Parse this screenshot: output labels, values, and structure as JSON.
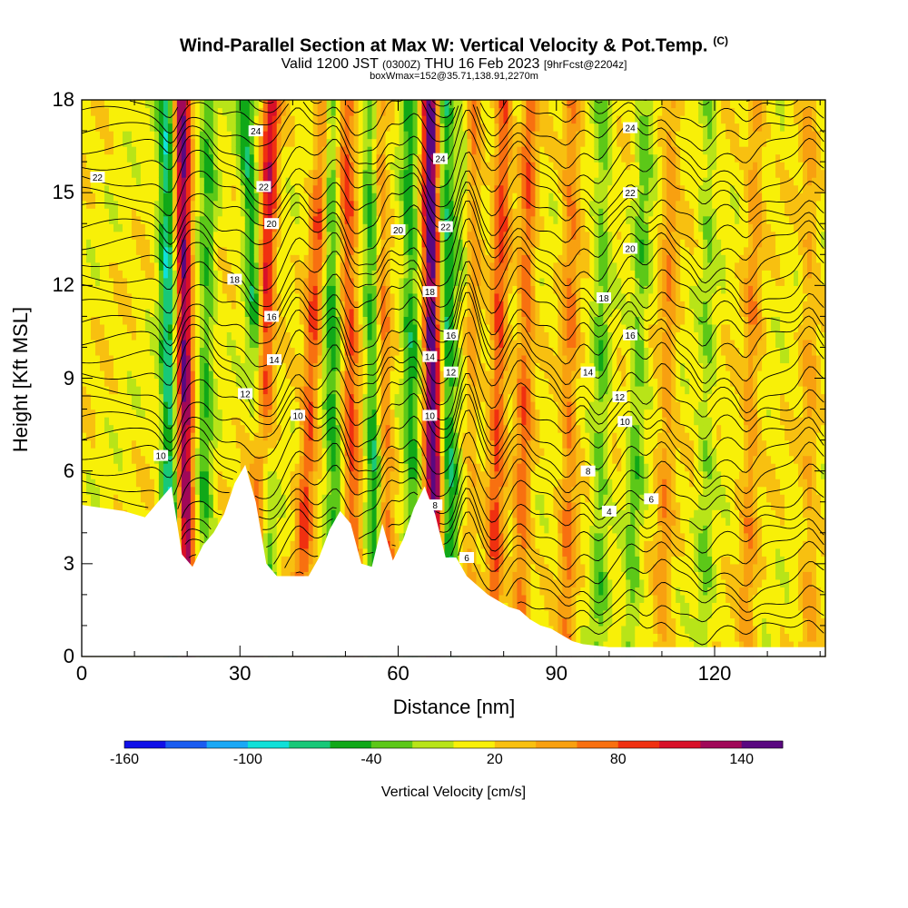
{
  "title": {
    "main": "Wind-Parallel Section at Max W: Vertical Velocity & Pot.Temp.",
    "copyright": "(C)",
    "valid_prefix": "Valid 1200 JST",
    "valid_z": "(0300Z)",
    "valid_date": "THU 16 Feb 2023",
    "forecast": "[9hrFcst@2204z]",
    "box": "boxWmax=152@35.71,138.91,2270m"
  },
  "colors": {
    "terrain": "#ffffff",
    "contour": "#000000",
    "colorbar": [
      "#1010e8",
      "#1a5cf0",
      "#1aa8f5",
      "#10e0d8",
      "#18c878",
      "#10a818",
      "#5cc818",
      "#b8e418",
      "#f8f008",
      "#f8c010",
      "#f8a010",
      "#f87010",
      "#f03010",
      "#d81028",
      "#a00858",
      "#5a0880"
    ]
  },
  "chart_data": {
    "type": "heatmap",
    "title": "Wind-Parallel Section at Max W: Vertical Velocity & Pot.Temp.",
    "xlabel": "Distance [nm]",
    "ylabel": "Height [Kft MSL]",
    "xlim": [
      0,
      141
    ],
    "ylim": [
      0,
      18
    ],
    "xticks": [
      0,
      30,
      60,
      90,
      120
    ],
    "yticks": [
      0,
      3,
      6,
      9,
      12,
      15,
      18
    ],
    "colorbar": {
      "label": "Vertical Velocity [cm/s]",
      "tick_labels": [
        -160,
        -100,
        -40,
        20,
        80,
        140
      ],
      "min": -160,
      "max": 160,
      "step": 20
    },
    "terrain_profile": {
      "x": [
        0,
        8,
        12,
        15,
        17,
        19,
        21,
        23,
        25,
        27,
        29,
        31,
        33,
        35,
        37,
        39,
        41,
        43,
        45,
        47,
        49,
        51,
        53,
        55,
        57,
        59,
        61,
        63,
        65,
        67,
        69,
        71,
        73,
        75,
        77,
        79,
        81,
        83,
        85,
        87,
        89,
        91,
        93,
        95,
        100,
        110,
        120,
        130,
        141
      ],
      "height_kft": [
        4.9,
        4.7,
        4.5,
        5.1,
        5.5,
        3.3,
        2.9,
        3.6,
        4.0,
        4.6,
        5.6,
        6.2,
        5.0,
        3.0,
        2.6,
        2.6,
        2.6,
        2.6,
        3.2,
        4.1,
        4.7,
        4.3,
        3.0,
        2.9,
        4.3,
        3.1,
        3.8,
        4.8,
        5.5,
        4.6,
        3.2,
        3.2,
        2.6,
        2.3,
        2.0,
        1.8,
        1.6,
        1.5,
        1.2,
        1.0,
        0.9,
        0.7,
        0.5,
        0.4,
        0.3,
        0.3,
        0.3,
        0.3,
        0.3
      ]
    },
    "updraft_bands": [
      {
        "x_low": 20,
        "x_high": 19,
        "w_cm_s": 130
      },
      {
        "x_low": 33,
        "x_high": 36,
        "w_cm_s": 100
      },
      {
        "x_low": 41,
        "x_high": 46,
        "w_cm_s": 70
      },
      {
        "x_low": 52,
        "x_high": 50,
        "w_cm_s": 70
      },
      {
        "x_low": 58,
        "x_high": 56,
        "w_cm_s": 70
      },
      {
        "x_low": 67,
        "x_high": 66,
        "w_cm_s": 150
      },
      {
        "x_low": 73,
        "x_high": 74,
        "w_cm_s": 80
      },
      {
        "x_low": 78,
        "x_high": 80,
        "w_cm_s": 70
      },
      {
        "x_low": 83,
        "x_high": 85,
        "w_cm_s": 60
      },
      {
        "x_low": 92,
        "x_high": 93,
        "w_cm_s": 50
      },
      {
        "x_low": 110,
        "x_high": 112,
        "w_cm_s": 40
      },
      {
        "x_low": 126,
        "x_high": 128,
        "w_cm_s": 40
      },
      {
        "x_low": 138,
        "x_high": 138,
        "w_cm_s": 30
      }
    ],
    "downdraft_bands": [
      {
        "x_low": 17,
        "x_high": 16,
        "w_cm_s": -90
      },
      {
        "x_low": 23,
        "x_high": 24,
        "w_cm_s": -50
      },
      {
        "x_low": 36,
        "x_high": 31,
        "w_cm_s": -70
      },
      {
        "x_low": 48,
        "x_high": 47,
        "w_cm_s": -60
      },
      {
        "x_low": 56,
        "x_high": 55,
        "w_cm_s": -80
      },
      {
        "x_low": 63,
        "x_high": 62,
        "w_cm_s": -60
      },
      {
        "x_low": 70,
        "x_high": 69,
        "w_cm_s": -70
      },
      {
        "x_low": 73,
        "x_high": 73,
        "w_cm_s": -60
      },
      {
        "x_low": 98,
        "x_high": 99,
        "w_cm_s": -40
      },
      {
        "x_low": 104,
        "x_high": 107,
        "w_cm_s": -40
      },
      {
        "x_low": 118,
        "x_high": 119,
        "w_cm_s": -30
      }
    ],
    "isentrope_labels": [
      {
        "text": "24",
        "x": 33,
        "y": 17.0
      },
      {
        "text": "24",
        "x": 68,
        "y": 16.1
      },
      {
        "text": "24",
        "x": 104,
        "y": 17.1
      },
      {
        "text": "22",
        "x": 3,
        "y": 15.5
      },
      {
        "text": "22",
        "x": 34.5,
        "y": 15.2
      },
      {
        "text": "22",
        "x": 69,
        "y": 13.9
      },
      {
        "text": "22",
        "x": 104,
        "y": 15.0
      },
      {
        "text": "20",
        "x": 36,
        "y": 14.0
      },
      {
        "text": "20",
        "x": 60,
        "y": 13.8
      },
      {
        "text": "20",
        "x": 104,
        "y": 13.2
      },
      {
        "text": "18",
        "x": 29,
        "y": 12.2
      },
      {
        "text": "18",
        "x": 66,
        "y": 11.8
      },
      {
        "text": "18",
        "x": 99,
        "y": 11.6
      },
      {
        "text": "16",
        "x": 36,
        "y": 11.0
      },
      {
        "text": "16",
        "x": 70,
        "y": 10.4
      },
      {
        "text": "16",
        "x": 104,
        "y": 10.4
      },
      {
        "text": "14",
        "x": 36.5,
        "y": 9.6
      },
      {
        "text": "14",
        "x": 66,
        "y": 9.7
      },
      {
        "text": "14",
        "x": 96,
        "y": 9.2
      },
      {
        "text": "12",
        "x": 31,
        "y": 8.5
      },
      {
        "text": "12",
        "x": 70,
        "y": 9.2
      },
      {
        "text": "12",
        "x": 102,
        "y": 8.4
      },
      {
        "text": "10",
        "x": 15,
        "y": 6.5
      },
      {
        "text": "10",
        "x": 41,
        "y": 7.8
      },
      {
        "text": "10",
        "x": 66,
        "y": 7.8
      },
      {
        "text": "10",
        "x": 103,
        "y": 7.6
      },
      {
        "text": "8",
        "x": 96,
        "y": 6.0
      },
      {
        "text": "8",
        "x": 67,
        "y": 4.9
      },
      {
        "text": "6",
        "x": 108,
        "y": 5.1
      },
      {
        "text": "6",
        "x": 73,
        "y": 3.2
      },
      {
        "text": "4",
        "x": 100,
        "y": 4.7
      }
    ]
  }
}
